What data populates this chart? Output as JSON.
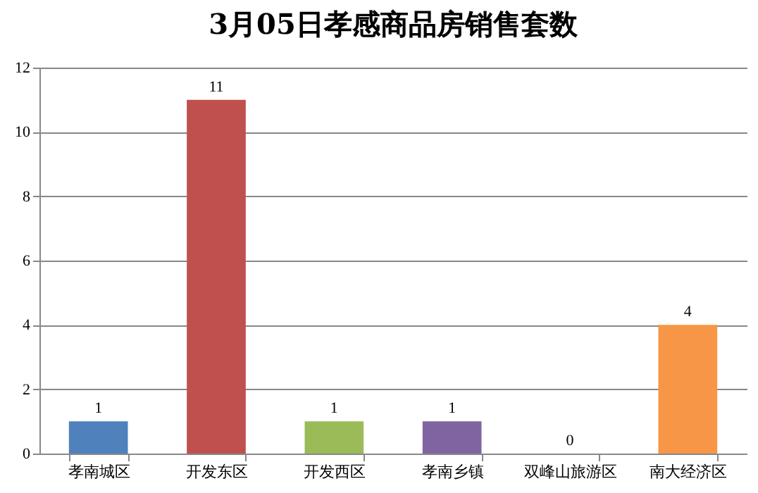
{
  "chart_data": {
    "type": "bar",
    "title": "3月05日孝感商品房销售套数",
    "categories": [
      "孝南城区",
      "开发东区",
      "开发西区",
      "孝南乡镇",
      "双峰山旅游区",
      "南大经济区"
    ],
    "values": [
      1,
      11,
      1,
      1,
      0,
      4
    ],
    "colors": [
      "#4f81bd",
      "#c0504d",
      "#9bbb59",
      "#8064a2",
      "#4bacc6",
      "#f79646"
    ],
    "ylim": [
      0,
      12
    ],
    "yticks": [
      0,
      2,
      4,
      6,
      8,
      10,
      12
    ],
    "grid": "y",
    "data_labels": true
  }
}
